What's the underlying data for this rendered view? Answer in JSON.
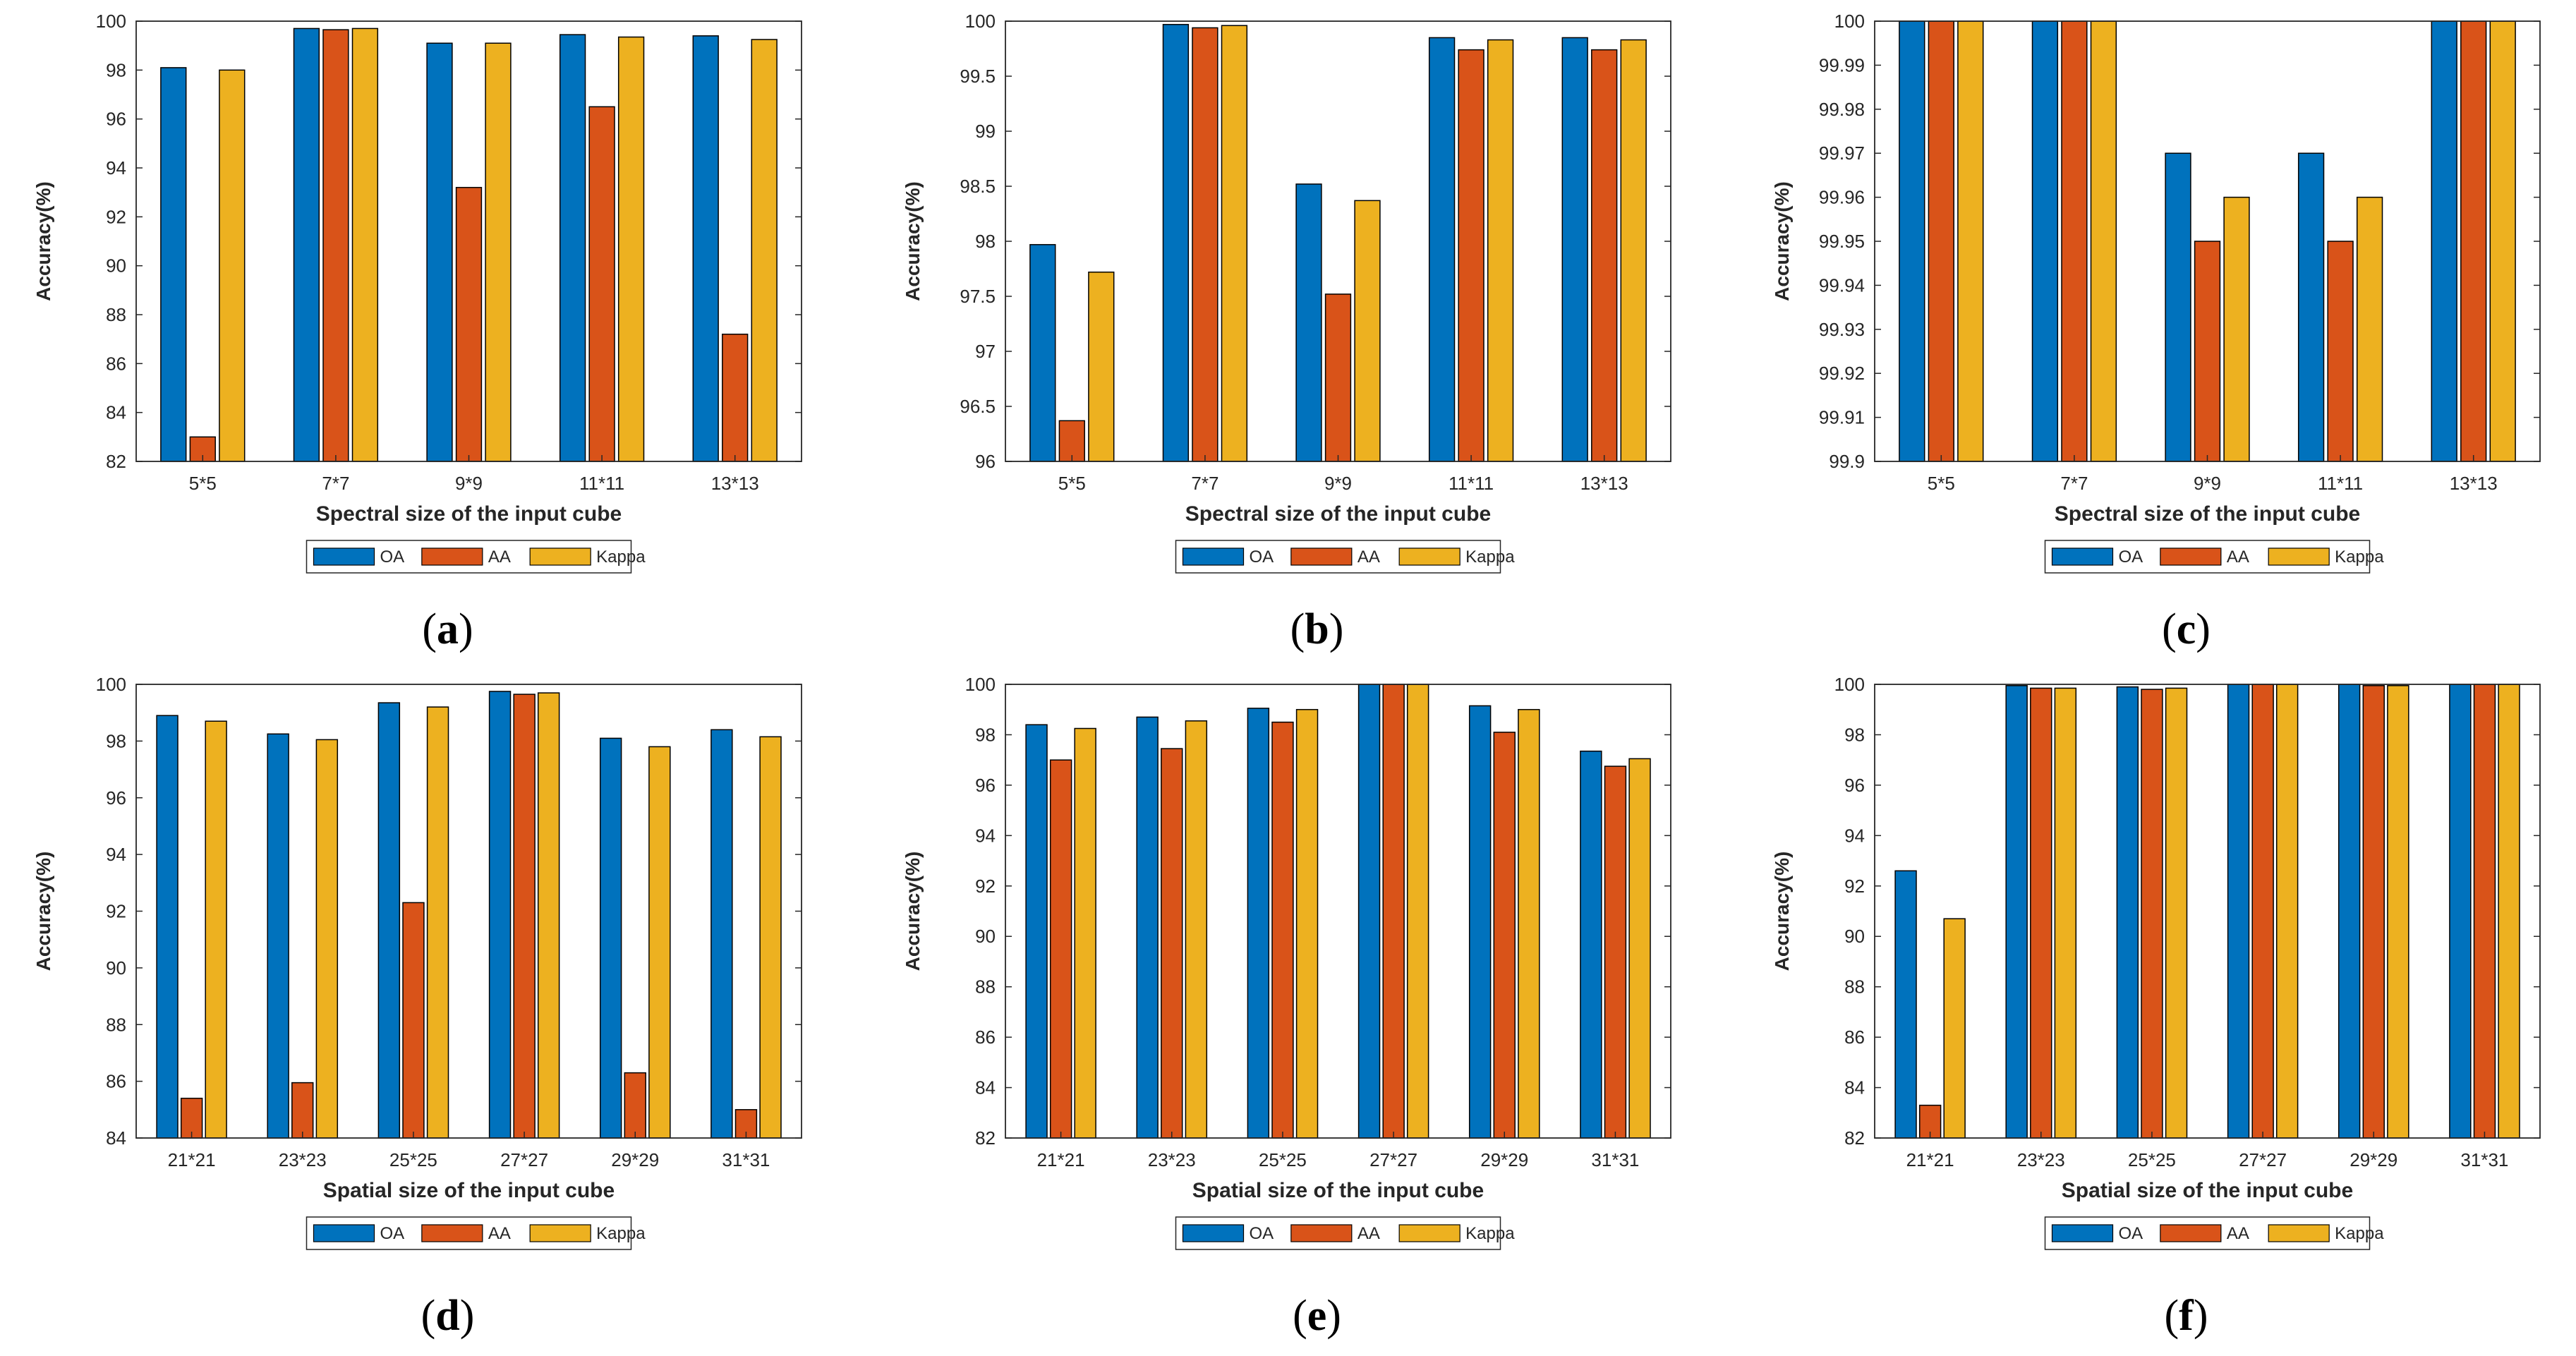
{
  "colors": {
    "OA": "#0072BD",
    "AA": "#D95319",
    "Kappa": "#EDB120"
  },
  "legend": [
    "OA",
    "AA",
    "Kappa"
  ],
  "chart_data": [
    {
      "panel": "a",
      "type": "bar",
      "categories": [
        "5*5",
        "7*7",
        "9*9",
        "11*11",
        "13*13"
      ],
      "series": [
        {
          "name": "OA",
          "values": [
            98.1,
            99.7,
            99.1,
            99.45,
            99.4
          ]
        },
        {
          "name": "AA",
          "values": [
            83.0,
            99.65,
            93.2,
            96.5,
            87.2
          ]
        },
        {
          "name": "Kappa",
          "values": [
            98.0,
            99.7,
            99.1,
            99.35,
            99.25
          ]
        }
      ],
      "ylim": [
        82,
        100
      ],
      "yticks": [
        "82",
        "84",
        "86",
        "88",
        "90",
        "92",
        "94",
        "96",
        "98",
        "100"
      ],
      "xlabel": "Spectral size of the input cube",
      "ylabel": "Accuracy(%)"
    },
    {
      "panel": "b",
      "type": "bar",
      "categories": [
        "5*5",
        "7*7",
        "9*9",
        "11*11",
        "13*13"
      ],
      "series": [
        {
          "name": "OA",
          "values": [
            97.97,
            99.97,
            98.52,
            99.85,
            99.85
          ]
        },
        {
          "name": "AA",
          "values": [
            96.37,
            99.94,
            97.52,
            99.74,
            99.74
          ]
        },
        {
          "name": "Kappa",
          "values": [
            97.72,
            99.96,
            98.37,
            99.83,
            99.83
          ]
        }
      ],
      "ylim": [
        96,
        100
      ],
      "yticks": [
        "96",
        "96.5",
        "97",
        "97.5",
        "98",
        "98.5",
        "99",
        "99.5",
        "100"
      ],
      "xlabel": "Spectral size of the input cube",
      "ylabel": "Accuracy(%)"
    },
    {
      "panel": "c",
      "type": "bar",
      "categories": [
        "5*5",
        "7*7",
        "9*9",
        "11*11",
        "13*13"
      ],
      "series": [
        {
          "name": "OA",
          "values": [
            100,
            100,
            99.97,
            99.97,
            100
          ]
        },
        {
          "name": "AA",
          "values": [
            100,
            100,
            99.95,
            99.95,
            100
          ]
        },
        {
          "name": "Kappa",
          "values": [
            100,
            100,
            99.96,
            99.96,
            100
          ]
        }
      ],
      "ylim": [
        99.9,
        100
      ],
      "yticks": [
        "99.9",
        "99.91",
        "99.92",
        "99.93",
        "99.94",
        "99.95",
        "99.96",
        "99.97",
        "99.98",
        "99.99",
        "100"
      ],
      "xlabel": "Spectral size of the input cube",
      "ylabel": "Accuracy(%)"
    },
    {
      "panel": "d",
      "type": "bar",
      "categories": [
        "21*21",
        "23*23",
        "25*25",
        "27*27",
        "29*29",
        "31*31"
      ],
      "series": [
        {
          "name": "OA",
          "values": [
            98.9,
            98.25,
            99.35,
            99.75,
            98.1,
            98.4
          ]
        },
        {
          "name": "AA",
          "values": [
            85.4,
            85.95,
            92.3,
            99.65,
            86.3,
            85.0
          ]
        },
        {
          "name": "Kappa",
          "values": [
            98.7,
            98.05,
            99.2,
            99.7,
            97.8,
            98.15
          ]
        }
      ],
      "ylim": [
        84,
        100
      ],
      "yticks": [
        "84",
        "86",
        "88",
        "90",
        "92",
        "94",
        "96",
        "98",
        "100"
      ],
      "xlabel": "Spatial size of the input cube",
      "ylabel": "Accuracy(%)"
    },
    {
      "panel": "e",
      "type": "bar",
      "categories": [
        "21*21",
        "23*23",
        "25*25",
        "27*27",
        "29*29",
        "31*31"
      ],
      "series": [
        {
          "name": "OA",
          "values": [
            98.4,
            98.7,
            99.05,
            100,
            99.15,
            97.35
          ]
        },
        {
          "name": "AA",
          "values": [
            97.0,
            97.45,
            98.5,
            100,
            98.1,
            96.75
          ]
        },
        {
          "name": "Kappa",
          "values": [
            98.25,
            98.55,
            99.0,
            100,
            99.0,
            97.05
          ]
        }
      ],
      "ylim": [
        82,
        100
      ],
      "yticks": [
        "82",
        "84",
        "86",
        "88",
        "90",
        "92",
        "94",
        "96",
        "98",
        "100"
      ],
      "xlabel": "Spatial size of the input cube",
      "ylabel": "Accuracy(%)"
    },
    {
      "panel": "f",
      "type": "bar",
      "categories": [
        "21*21",
        "23*23",
        "25*25",
        "27*27",
        "29*29",
        "31*31"
      ],
      "series": [
        {
          "name": "OA",
          "values": [
            92.6,
            99.95,
            99.9,
            100,
            100,
            100
          ]
        },
        {
          "name": "AA",
          "values": [
            83.3,
            99.85,
            99.8,
            100,
            99.95,
            100
          ]
        },
        {
          "name": "Kappa",
          "values": [
            90.7,
            99.85,
            99.85,
            100,
            99.95,
            100
          ]
        }
      ],
      "ylim": [
        82,
        100
      ],
      "yticks": [
        "82",
        "84",
        "86",
        "88",
        "90",
        "92",
        "94",
        "96",
        "98",
        "100"
      ],
      "xlabel": "Spatial size of the input cube",
      "ylabel": "Accuracy(%)"
    }
  ]
}
